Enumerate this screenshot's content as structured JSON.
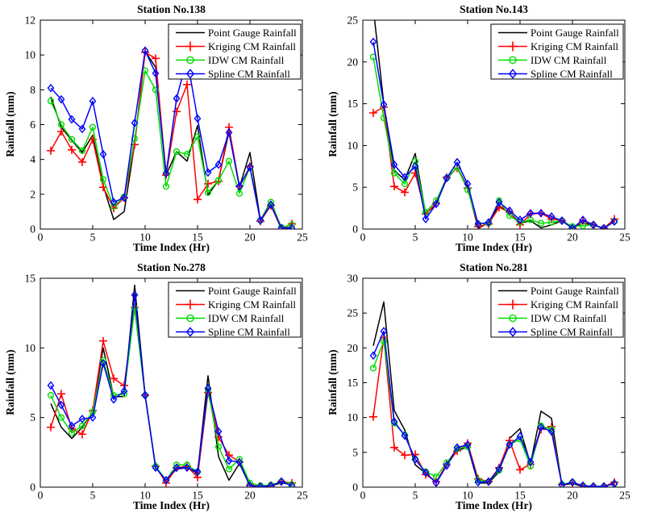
{
  "figure": {
    "background": "#ffffff"
  },
  "chart_data": [
    {
      "type": "line",
      "title": "Station No.138",
      "xlabel": "Time Index (Hr)",
      "ylabel": "Rainfall (mm)",
      "xlim": [
        0,
        25
      ],
      "ylim": [
        0,
        12
      ],
      "xticks": [
        0,
        5,
        10,
        15,
        20,
        25
      ],
      "yticks": [
        0,
        2,
        4,
        6,
        8,
        10,
        12
      ],
      "grid": false,
      "legend_position": "upper-right",
      "x": [
        1,
        2,
        3,
        4,
        5,
        6,
        7,
        8,
        9,
        10,
        11,
        12,
        13,
        14,
        15,
        16,
        17,
        18,
        19,
        20,
        21,
        22,
        23,
        24
      ],
      "series": [
        {
          "name": "Point Gauge Rainfall",
          "color": "#000000",
          "marker": "none",
          "values": [
            7.6,
            5.85,
            5.1,
            4.4,
            5.4,
            2.5,
            0.55,
            1.0,
            4.9,
            10.2,
            9.3,
            3.1,
            4.45,
            3.9,
            5.95,
            1.95,
            2.8,
            5.6,
            2.4,
            4.4,
            0.5,
            1.6,
            0.05,
            0.1
          ]
        },
        {
          "name": "Kriging CM Rainfall",
          "color": "#ff0000",
          "marker": "plus",
          "values": [
            4.5,
            5.6,
            4.55,
            3.85,
            5.15,
            2.4,
            1.2,
            1.8,
            4.85,
            10.15,
            9.8,
            3.1,
            6.75,
            8.3,
            1.7,
            2.6,
            2.75,
            5.85,
            2.45,
            3.6,
            0.45,
            1.35,
            0.0,
            0.3
          ]
        },
        {
          "name": "IDW CM Rainfall",
          "color": "#00dc00",
          "marker": "circle",
          "values": [
            7.35,
            6.0,
            5.15,
            4.5,
            5.85,
            2.85,
            1.3,
            1.85,
            5.2,
            9.1,
            8.0,
            2.45,
            4.45,
            4.3,
            5.3,
            2.1,
            2.8,
            3.9,
            2.05,
            3.55,
            0.5,
            1.55,
            0.1,
            0.25
          ]
        },
        {
          "name": "Spline CM Rainfall",
          "color": "#0000ff",
          "marker": "diamond",
          "values": [
            8.1,
            7.45,
            6.3,
            5.75,
            7.35,
            4.3,
            1.55,
            1.8,
            6.1,
            10.25,
            8.95,
            3.2,
            7.5,
            9.8,
            6.35,
            3.25,
            3.7,
            5.55,
            2.45,
            3.55,
            0.5,
            1.4,
            0.05,
            0.05
          ]
        }
      ]
    },
    {
      "type": "line",
      "title": "Station No.143",
      "xlabel": "Time Index (Hr)",
      "ylabel": "Rainfall (mm)",
      "xlim": [
        0,
        25
      ],
      "ylim": [
        0,
        25
      ],
      "xticks": [
        0,
        5,
        10,
        15,
        20,
        25
      ],
      "yticks": [
        0,
        5,
        10,
        15,
        20,
        25
      ],
      "grid": false,
      "legend_position": "upper-right",
      "x": [
        1,
        2,
        3,
        4,
        5,
        6,
        7,
        8,
        9,
        10,
        11,
        12,
        13,
        14,
        15,
        16,
        17,
        18,
        19,
        20,
        21,
        22,
        23,
        24
      ],
      "series": [
        {
          "name": "Point Gauge Rainfall",
          "color": "#000000",
          "marker": "none",
          "values": [
            26.5,
            15.0,
            7.0,
            5.9,
            9.05,
            1.8,
            3.0,
            6.0,
            7.4,
            5.0,
            0.05,
            0.8,
            2.8,
            2.0,
            0.7,
            1.0,
            0.15,
            0.5,
            1.0,
            0.1,
            0.7,
            0.5,
            0.05,
            1.0
          ]
        },
        {
          "name": "Kriging CM Rainfall",
          "color": "#ff0000",
          "marker": "plus",
          "values": [
            13.9,
            14.6,
            5.1,
            4.4,
            6.7,
            1.8,
            3.1,
            6.2,
            7.3,
            4.9,
            0.3,
            0.6,
            2.6,
            2.0,
            0.5,
            1.8,
            1.9,
            1.2,
            1.0,
            0.1,
            1.0,
            0.5,
            0.1,
            1.2
          ]
        },
        {
          "name": "IDW CM Rainfall",
          "color": "#00dc00",
          "marker": "circle",
          "values": [
            20.6,
            13.3,
            6.7,
            5.4,
            8.1,
            2.0,
            3.4,
            6.1,
            7.4,
            4.7,
            0.6,
            0.7,
            3.4,
            1.6,
            0.8,
            1.1,
            0.7,
            0.8,
            1.0,
            0.3,
            0.4,
            0.5,
            0.1,
            0.9
          ]
        },
        {
          "name": "Spline CM Rainfall",
          "color": "#0000ff",
          "marker": "diamond",
          "values": [
            22.4,
            14.9,
            7.7,
            6.2,
            7.5,
            1.2,
            3.0,
            6.1,
            8.0,
            5.4,
            0.6,
            0.8,
            3.2,
            2.2,
            1.1,
            1.9,
            1.9,
            1.5,
            1.0,
            0.1,
            1.1,
            0.5,
            0.1,
            0.9
          ]
        }
      ]
    },
    {
      "type": "line",
      "title": "Station No.278",
      "xlabel": "Time Index (Hr)",
      "ylabel": "Rainfall (mm)",
      "xlim": [
        0,
        25
      ],
      "ylim": [
        0,
        15
      ],
      "xticks": [
        0,
        5,
        10,
        15,
        20,
        25
      ],
      "yticks": [
        0,
        5,
        10,
        15
      ],
      "grid": false,
      "legend_position": "upper-right",
      "x": [
        1,
        2,
        3,
        4,
        5,
        6,
        7,
        8,
        9,
        10,
        11,
        12,
        13,
        14,
        15,
        16,
        17,
        18,
        19,
        20,
        21,
        22,
        23,
        24
      ],
      "series": [
        {
          "name": "Point Gauge Rainfall",
          "color": "#000000",
          "marker": "none",
          "values": [
            6.0,
            4.3,
            3.5,
            4.3,
            5.4,
            10.0,
            6.5,
            6.5,
            14.5,
            6.6,
            1.4,
            0.5,
            1.3,
            1.4,
            1.0,
            8.0,
            2.2,
            0.5,
            1.7,
            0.1,
            0.05,
            0.1,
            0.3,
            0.2
          ]
        },
        {
          "name": "Kriging CM Rainfall",
          "color": "#ff0000",
          "marker": "plus",
          "values": [
            4.3,
            6.7,
            4.2,
            3.8,
            5.5,
            10.5,
            7.8,
            7.3,
            12.9,
            6.6,
            1.5,
            0.3,
            1.4,
            1.5,
            0.7,
            6.8,
            3.6,
            2.3,
            1.8,
            0.15,
            0.05,
            0.1,
            0.4,
            0.3
          ]
        },
        {
          "name": "IDW CM Rainfall",
          "color": "#00dc00",
          "marker": "circle",
          "values": [
            6.6,
            5.0,
            3.9,
            4.4,
            5.4,
            9.1,
            6.6,
            6.7,
            12.85,
            6.6,
            1.5,
            0.5,
            1.6,
            1.6,
            1.1,
            7.0,
            2.9,
            1.3,
            2.0,
            0.3,
            0.1,
            0.15,
            0.4,
            0.2
          ]
        },
        {
          "name": "Spline CM Rainfall",
          "color": "#0000ff",
          "marker": "diamond",
          "values": [
            7.3,
            5.9,
            4.4,
            4.9,
            5.0,
            8.9,
            6.3,
            6.9,
            13.8,
            6.6,
            1.4,
            0.5,
            1.4,
            1.4,
            1.1,
            7.1,
            4.0,
            1.9,
            1.8,
            0.1,
            0.05,
            0.1,
            0.4,
            0.1
          ]
        }
      ]
    },
    {
      "type": "line",
      "title": "Station No.281",
      "xlabel": "Time Index (Hr)",
      "ylabel": "Rainfall (mm)",
      "xlim": [
        0,
        25
      ],
      "ylim": [
        0,
        30
      ],
      "xticks": [
        0,
        5,
        10,
        15,
        20,
        25
      ],
      "yticks": [
        0,
        5,
        10,
        15,
        20,
        25,
        30
      ],
      "grid": false,
      "legend_position": "upper-right",
      "x": [
        1,
        2,
        3,
        4,
        5,
        6,
        7,
        8,
        9,
        10,
        11,
        12,
        13,
        14,
        15,
        16,
        17,
        18,
        19,
        20,
        21,
        22,
        23,
        24
      ],
      "series": [
        {
          "name": "Point Gauge Rainfall",
          "color": "#000000",
          "marker": "none",
          "values": [
            20.3,
            26.6,
            11.0,
            8.2,
            3.2,
            2.0,
            0.7,
            3.2,
            5.2,
            5.8,
            0.6,
            0.6,
            2.2,
            7.0,
            8.4,
            3.3,
            10.9,
            9.9,
            0.3,
            0.5,
            0.1,
            0.1,
            0.1,
            0.5
          ]
        },
        {
          "name": "Kriging CM Rainfall",
          "color": "#ff0000",
          "marker": "plus",
          "values": [
            10.1,
            21.5,
            5.7,
            4.6,
            4.7,
            1.8,
            0.8,
            3.3,
            5.2,
            6.3,
            1.2,
            0.8,
            2.8,
            6.7,
            2.5,
            3.3,
            8.3,
            8.7,
            0.4,
            0.6,
            0.2,
            0.1,
            0.1,
            0.7
          ]
        },
        {
          "name": "IDW CM Rainfall",
          "color": "#00dc00",
          "marker": "circle",
          "values": [
            17.1,
            21.0,
            9.2,
            7.5,
            4.0,
            2.2,
            1.5,
            3.5,
            5.5,
            5.8,
            1.0,
            0.8,
            2.4,
            6.1,
            6.9,
            3.0,
            8.8,
            8.3,
            0.4,
            0.7,
            0.2,
            0.1,
            0.1,
            0.5
          ]
        },
        {
          "name": "Spline CM Rainfall",
          "color": "#0000ff",
          "marker": "diamond",
          "values": [
            18.9,
            22.4,
            9.4,
            7.4,
            4.0,
            2.1,
            0.6,
            3.1,
            5.7,
            6.1,
            0.7,
            0.8,
            2.6,
            6.1,
            7.3,
            3.6,
            8.6,
            8.0,
            0.3,
            0.7,
            0.2,
            0.1,
            0.1,
            0.5
          ]
        }
      ]
    }
  ]
}
